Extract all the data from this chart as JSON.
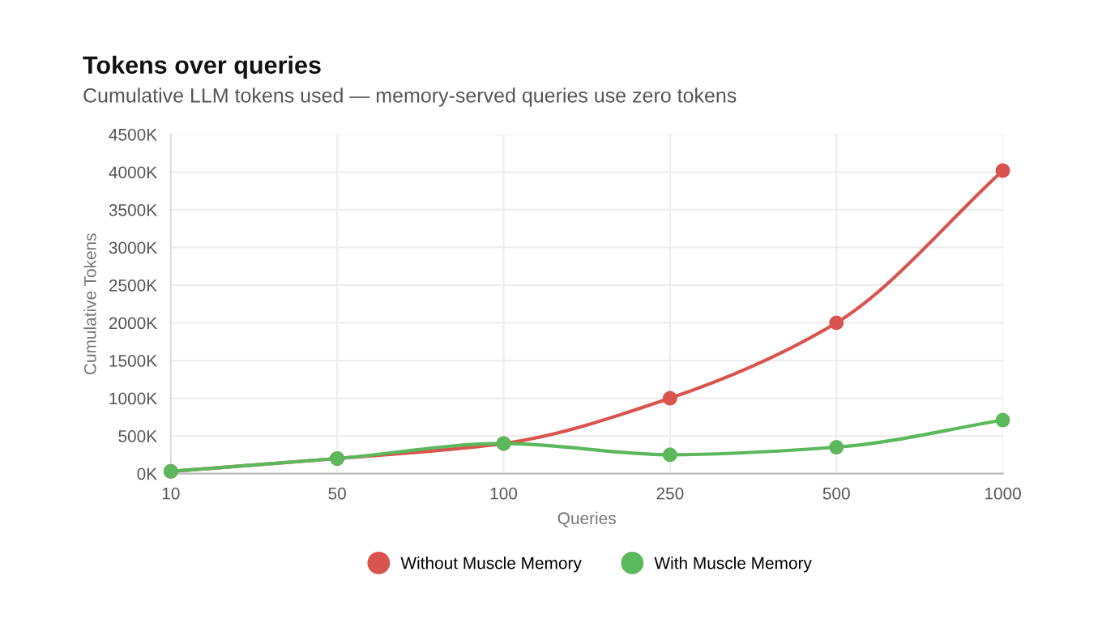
{
  "chart_data": {
    "type": "line",
    "title": "Tokens over queries",
    "subtitle": "Cumulative LLM tokens used — memory-served queries use zero tokens",
    "xlabel": "Queries",
    "ylabel": "Cumulative Tokens",
    "categories": [
      "10",
      "50",
      "100",
      "250",
      "500",
      "1000"
    ],
    "series": [
      {
        "name": "Without Muscle Memory",
        "color": "#d9534f",
        "values": [
          30000,
          200000,
          400000,
          1000000,
          2000000,
          4020000
        ]
      },
      {
        "name": "With Muscle Memory",
        "color": "#5cb85c",
        "values": [
          30000,
          200000,
          400000,
          250000,
          350000,
          710000
        ]
      }
    ],
    "ylim": [
      0,
      4500000
    ],
    "yticks": [
      {
        "value": 0,
        "label": "0K"
      },
      {
        "value": 500000,
        "label": "500K"
      },
      {
        "value": 1000000,
        "label": "1000K"
      },
      {
        "value": 1500000,
        "label": "1500K"
      },
      {
        "value": 2000000,
        "label": "2000K"
      },
      {
        "value": 2500000,
        "label": "2500K"
      },
      {
        "value": 3000000,
        "label": "3000K"
      },
      {
        "value": 3500000,
        "label": "3500K"
      },
      {
        "value": 4000000,
        "label": "4000K"
      },
      {
        "value": 4500000,
        "label": "4500K"
      }
    ],
    "grid": true,
    "legend": "bottom",
    "marker": "circle",
    "line_style": "solid"
  }
}
